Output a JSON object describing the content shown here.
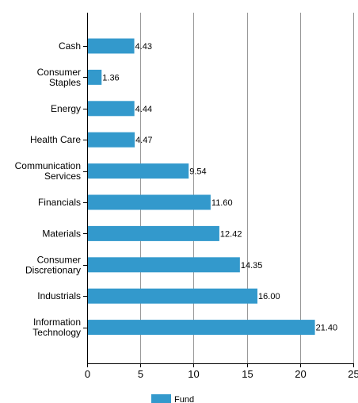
{
  "chart_data": {
    "type": "bar",
    "orientation": "horizontal",
    "categories": [
      [
        "Cash"
      ],
      [
        "Consumer",
        "Staples"
      ],
      [
        "Energy"
      ],
      [
        "Health Care"
      ],
      [
        "Communication",
        "Services"
      ],
      [
        "Financials"
      ],
      [
        "Materials"
      ],
      [
        "Consumer",
        "Discretionary"
      ],
      [
        "Industrials"
      ],
      [
        "Information",
        "Technology"
      ]
    ],
    "series": [
      {
        "name": "Fund",
        "color": "#3399cc",
        "values": [
          4.43,
          1.36,
          4.44,
          4.47,
          9.54,
          11.6,
          12.42,
          14.35,
          16.0,
          21.4
        ],
        "labels": [
          "4.43",
          "1.36",
          "4.44",
          "4.47",
          "9.54",
          "11.60",
          "12.42",
          "14.35",
          "16.00",
          "21.40"
        ]
      }
    ],
    "xlim": [
      0,
      25
    ],
    "xticks": [
      0,
      5,
      10,
      15,
      20,
      25
    ],
    "xtick_labels": [
      "0",
      "5",
      "10",
      "15",
      "20",
      "25"
    ],
    "grid": true,
    "legend_position": "bottom-center",
    "gridline_color": "#999999",
    "axis_color": "#000000"
  }
}
